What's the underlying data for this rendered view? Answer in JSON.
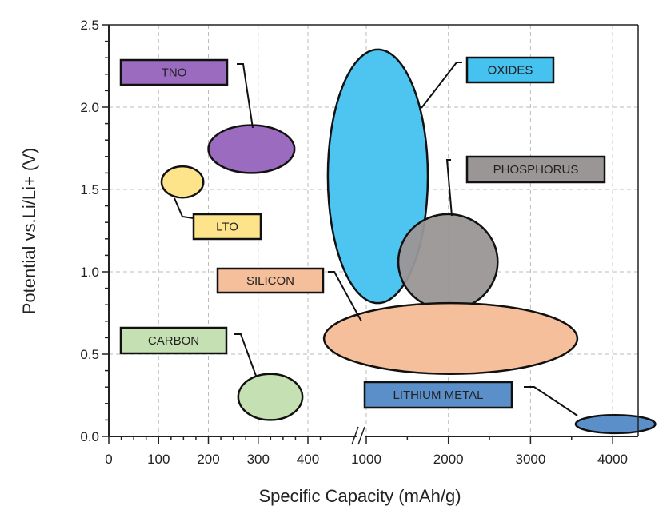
{
  "chart_data": {
    "type": "ellipse-region",
    "title": "",
    "xlabel": "Specific Capacity (mAh/g)",
    "ylabel": "Potential vs.Li/Li+ (V)",
    "xlim": [
      0,
      4000
    ],
    "ylim": [
      0,
      2.5
    ],
    "x_axis_break": [
      450,
      950
    ],
    "x_ticks": [
      "0",
      "100",
      "200",
      "300",
      "400",
      "1000",
      "2000",
      "3000",
      "4000"
    ],
    "x_tick_values": [
      0,
      100,
      200,
      300,
      400,
      1000,
      2000,
      3000,
      4000
    ],
    "y_ticks": [
      "0.0",
      "0.5",
      "1.0",
      "1.5",
      "2.0",
      "2.5"
    ],
    "y_tick_values": [
      0,
      0.5,
      1.0,
      1.5,
      2.0,
      2.5
    ],
    "grid": true,
    "regions": [
      {
        "name": "TNO",
        "x_range": [
          200,
          373
        ],
        "y_range": [
          1.6,
          1.89
        ],
        "color": "#9b6bbf"
      },
      {
        "name": "LTO",
        "x_range": [
          106,
          190
        ],
        "y_range": [
          1.45,
          1.64
        ],
        "color": "#fde38a"
      },
      {
        "name": "CARBON",
        "x_range": [
          260,
          389
        ],
        "y_range": [
          0.1,
          0.38
        ],
        "color": "#c5e0b3"
      },
      {
        "name": "OXIDES",
        "x_range": [
          440,
          1750
        ],
        "y_range": [
          0.81,
          2.35
        ],
        "color": "#45c2f0",
        "opacity": 0.95
      },
      {
        "name": "PHOSPHORUS",
        "x_range": [
          1390,
          2600
        ],
        "y_range": [
          0.77,
          1.35
        ],
        "color": "#9a9696",
        "opacity": 0.95
      },
      {
        "name": "SILICON",
        "x_range": [
          485,
          3570
        ],
        "y_range": [
          0.38,
          0.81
        ],
        "color": "#f6bf9c"
      },
      {
        "name": "LITHIUM METAL",
        "x_range": [
          3550,
          4520
        ],
        "y_range": [
          0.02,
          0.13
        ],
        "color": "#5b8fc9"
      }
    ]
  }
}
